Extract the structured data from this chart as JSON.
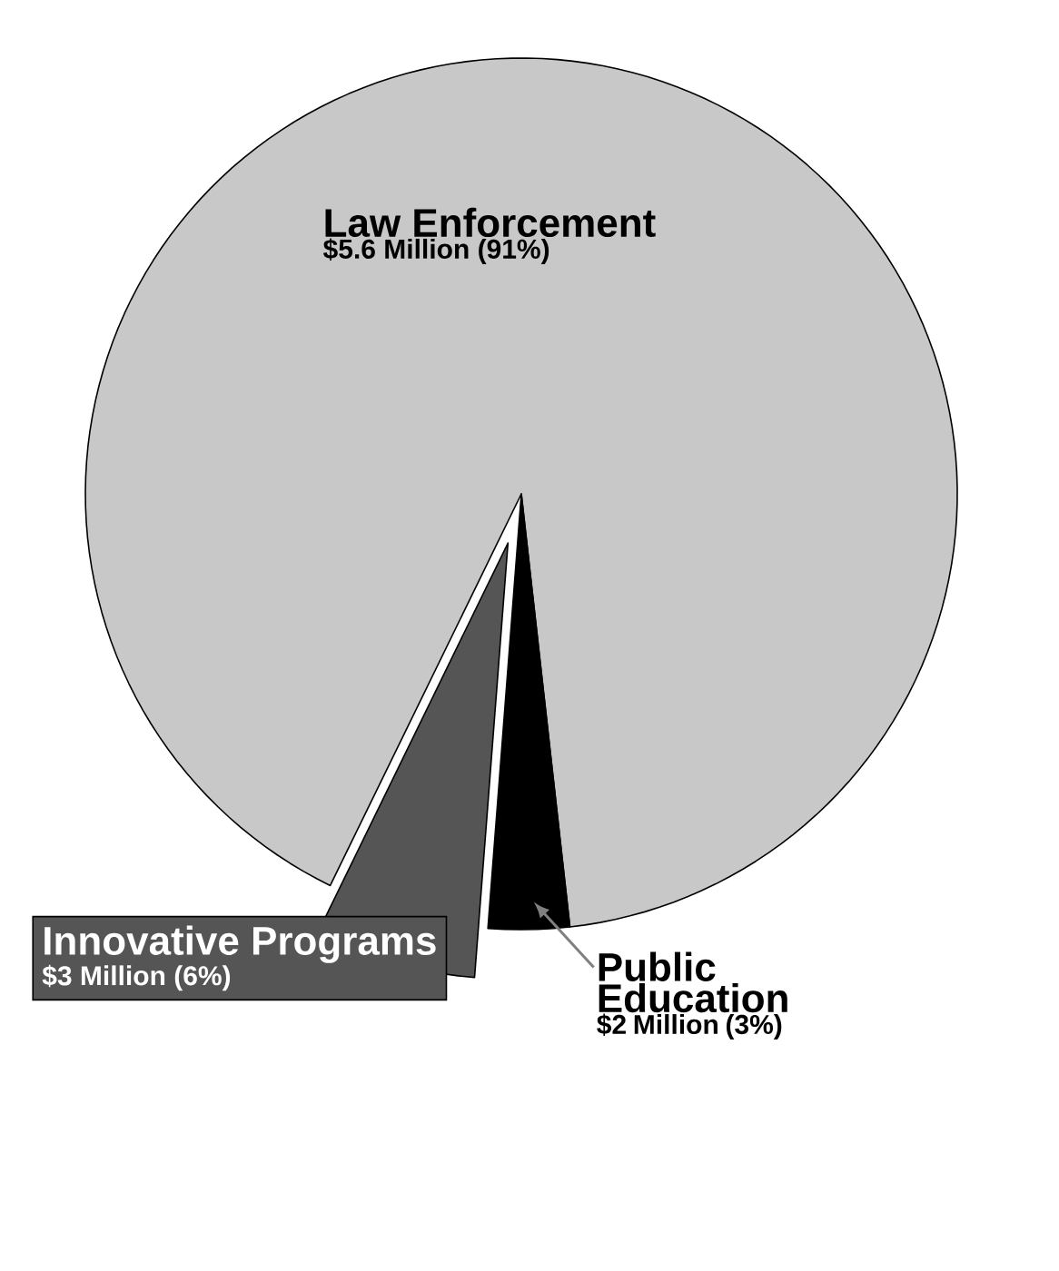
{
  "chart_data": {
    "type": "pie",
    "categories": [
      "Law Enforcement",
      "Innovative Programs",
      "Public Education"
    ],
    "values": [
      91,
      6,
      3
    ],
    "value_labels": [
      "$5.6 Million (91%)",
      "$3 Million (6%)",
      "$2 Million (3%)"
    ],
    "colors": [
      "#c8c8c8",
      "#555555",
      "#000000"
    ]
  }
}
